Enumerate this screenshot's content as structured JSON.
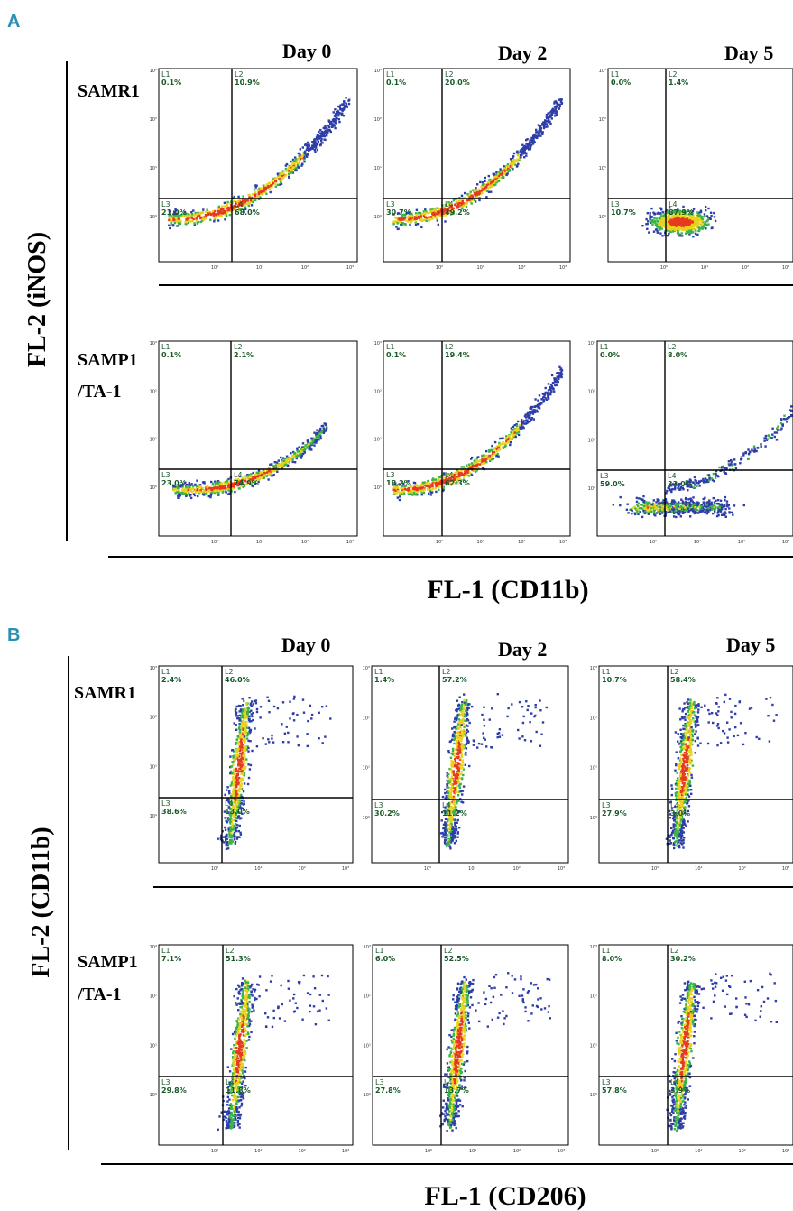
{
  "panels": [
    {
      "letter": "A",
      "columns": [
        "Day 0",
        "Day 2",
        "Day 5"
      ],
      "rows": [
        "SAMR1",
        "SAMP1\n/TA-1"
      ],
      "row_labels": [
        [
          "SAMR1"
        ],
        [
          "SAMP1",
          "/TA-1"
        ]
      ],
      "y_axis_title": "FL-2 (iNOS)",
      "x_axis_title": "FL-1 (CD11b)"
    },
    {
      "letter": "B",
      "columns": [
        "Day 0",
        "Day 2",
        "Day 5"
      ],
      "rows": [
        "SAMR1",
        "SAMP1\n/TA-1"
      ],
      "row_labels": [
        [
          "SAMR1"
        ],
        [
          "SAMP1",
          "/TA-1"
        ]
      ],
      "y_axis_title": "FL-2 (CD11b)",
      "x_axis_title": "FL-1 (CD206)"
    }
  ],
  "chart_data": [
    {
      "type": "scatter",
      "panel": "A",
      "xlabel": "FL-1 (CD11b)",
      "ylabel": "FL-2 (iNOS)",
      "x_scale": "log",
      "y_scale": "log",
      "x_ticks": [
        "10⁰",
        "10¹",
        "10²",
        "10³"
      ],
      "y_ticks": [
        "10⁰",
        "10¹",
        "10²",
        "10³"
      ],
      "quadrant_labels": [
        "L1",
        "L2",
        "L3",
        "L4"
      ],
      "plots": [
        {
          "row": "SAMR1",
          "day": "Day 0",
          "L1": "0.1%",
          "L2": "10.9%",
          "L3": "21.0%",
          "L4": "68.0%",
          "shape": "diag"
        },
        {
          "row": "SAMR1",
          "day": "Day 2",
          "L1": "0.1%",
          "L2": "20.0%",
          "L3": "30.7%",
          "L4": "49.2%",
          "shape": "diag"
        },
        {
          "row": "SAMR1",
          "day": "Day 5",
          "L1": "0.0%",
          "L2": "1.4%",
          "L3": "10.7%",
          "L4": "87.9%",
          "shape": "blob"
        },
        {
          "row": "SAMP1/TA-1",
          "day": "Day 0",
          "L1": "0.1%",
          "L2": "2.1%",
          "L3": "23.0%",
          "L4": "74.9%",
          "shape": "band"
        },
        {
          "row": "SAMP1/TA-1",
          "day": "Day 2",
          "L1": "0.1%",
          "L2": "19.4%",
          "L3": "18.2%",
          "L4": "62.3%",
          "shape": "diag"
        },
        {
          "row": "SAMP1/TA-1",
          "day": "Day 5",
          "L1": "0.0%",
          "L2": "8.0%",
          "L3": "59.0%",
          "L4": "33.0%",
          "shape": "lowleft"
        }
      ]
    },
    {
      "type": "scatter",
      "panel": "B",
      "xlabel": "FL-1 (CD206)",
      "ylabel": "FL-2 (CD11b)",
      "x_scale": "log",
      "y_scale": "log",
      "x_ticks": [
        "10⁰",
        "10¹",
        "10²",
        "10³"
      ],
      "y_ticks": [
        "10⁰",
        "10¹",
        "10²",
        "10³"
      ],
      "quadrant_labels": [
        "L1",
        "L2",
        "L3",
        "L4"
      ],
      "plots": [
        {
          "row": "SAMR1",
          "day": "Day 0",
          "L1": "2.4%",
          "L2": "46.0%",
          "L3": "38.6%",
          "L4": "13.0%",
          "shape": "vert"
        },
        {
          "row": "SAMR1",
          "day": "Day 2",
          "L1": "1.4%",
          "L2": "57.2%",
          "L3": "30.2%",
          "L4": "11.2%",
          "shape": "vert"
        },
        {
          "row": "SAMR1",
          "day": "Day 5",
          "L1": "10.7%",
          "L2": "58.4%",
          "L3": "27.9%",
          "L4": "3.0%",
          "shape": "vert"
        },
        {
          "row": "SAMP1/TA-1",
          "day": "Day 0",
          "L1": "7.1%",
          "L2": "51.3%",
          "L3": "29.8%",
          "L4": "11.8%",
          "shape": "vert"
        },
        {
          "row": "SAMP1/TA-1",
          "day": "Day 2",
          "L1": "6.0%",
          "L2": "52.5%",
          "L3": "27.8%",
          "L4": "13.7%",
          "shape": "vert"
        },
        {
          "row": "SAMP1/TA-1",
          "day": "Day 5",
          "L1": "8.0%",
          "L2": "30.2%",
          "L3": "57.8%",
          "L4": "3.9%",
          "shape": "vert"
        }
      ]
    }
  ],
  "colors": {
    "panel_letter": "#2a8fb0",
    "density_low": "#2e3ea8",
    "density_mid": "#3cb34a",
    "density_mid2": "#e8d21e",
    "density_high": "#e63a1e",
    "quadrant_text": "#1a5a2a"
  }
}
